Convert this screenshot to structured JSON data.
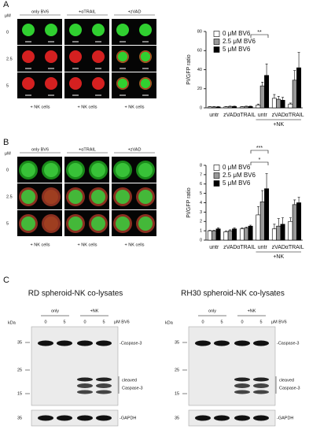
{
  "chart_data": [
    {
      "type": "bar",
      "y_label": "PI/GFP ratio",
      "categories": [
        "untr",
        "zVAD",
        "αTRAIL",
        "untr",
        "zVAD",
        "αTRAIL"
      ],
      "group_label": "+NK",
      "series": [
        {
          "name": "0 μM BV6",
          "color": "#ffffff",
          "values": [
            1,
            1,
            1,
            3,
            10,
            4
          ],
          "errors": [
            0.3,
            0.3,
            0.3,
            1,
            4,
            1
          ]
        },
        {
          "name": "2.5 μM BV6",
          "color": "#999999",
          "values": [
            1,
            1.5,
            1.5,
            23,
            9,
            29
          ],
          "errors": [
            0.3,
            0.3,
            0.3,
            4,
            3,
            10
          ]
        },
        {
          "name": "5 μM BV6",
          "color": "#000000",
          "values": [
            1,
            1.5,
            1.5,
            34,
            8,
            42
          ],
          "errors": [
            0.3,
            0.3,
            0.3,
            12,
            3,
            16
          ]
        }
      ],
      "ylim": [
        0,
        80
      ],
      "yticks": [
        0,
        20,
        40,
        60,
        80
      ],
      "annotations": [
        "**"
      ]
    },
    {
      "type": "bar",
      "y_label": "PI/GFP ratio",
      "categories": [
        "untr",
        "zVAD",
        "αTRAIL",
        "untr",
        "zVAD",
        "αTRAIL"
      ],
      "group_label": "+NK",
      "series": [
        {
          "name": "0 μM BV6",
          "color": "#ffffff",
          "values": [
            1,
            0.9,
            1.2,
            2.7,
            1.2,
            2
          ],
          "errors": [
            0.05,
            0.1,
            0.1,
            0.9,
            0.5,
            0.4
          ]
        },
        {
          "name": "2.5 μM BV6",
          "color": "#999999",
          "values": [
            1,
            1,
            1.3,
            4.1,
            1.5,
            3.8
          ],
          "errors": [
            0.05,
            0.1,
            0.1,
            1.2,
            0.8,
            0.5
          ]
        },
        {
          "name": "5 μM BV6",
          "color": "#000000",
          "values": [
            1.2,
            1.2,
            1.5,
            5.5,
            1.7,
            4
          ],
          "errors": [
            0.1,
            0.1,
            0.1,
            1.6,
            0.7,
            0.6
          ]
        }
      ],
      "ylim": [
        0,
        8
      ],
      "yticks": [
        0,
        1,
        2,
        3,
        4,
        5,
        6,
        7,
        8
      ],
      "annotations": [
        "***",
        "*"
      ]
    }
  ],
  "panels": {
    "A": {
      "letter": "A",
      "unit": "μM",
      "columns": [
        "only BV6",
        "+αTRAIL",
        "+zVAD"
      ],
      "rows": [
        "0",
        "2.5",
        "5"
      ],
      "footers": [
        "+ NK cells",
        "+ NK cells",
        "+ NK cells"
      ]
    },
    "B": {
      "letter": "B",
      "unit": "μM",
      "columns": [
        "only BV6",
        "+αTRAIL",
        "+zVAD"
      ],
      "rows": [
        "0",
        "2.5",
        "5"
      ],
      "footers": [
        "+ NK cells",
        "+ NK cells",
        "+ NK cells"
      ]
    },
    "C": {
      "letter": "C",
      "blots": [
        {
          "title": "RD spheroid-NK co-lysates",
          "kda": "kDa",
          "groups": [
            "only",
            "+NK"
          ],
          "lanes": [
            "0",
            "5",
            "0",
            "5"
          ],
          "unit": "μM BV6",
          "markers": [
            "35",
            "25",
            "15"
          ],
          "band": "-Caspase-3",
          "cleaved": [
            "cleaved",
            "Caspase-3"
          ],
          "loading_marker": "35",
          "loading": "-GAPDH"
        },
        {
          "title": "RH30 spheroid-NK co-lysates",
          "kda": "kDa",
          "groups": [
            "only",
            "+NK"
          ],
          "lanes": [
            "0",
            "5",
            "0",
            "5"
          ],
          "unit": "μM BV6",
          "markers": [
            "35",
            "25",
            "15"
          ],
          "band": "-Caspase-3",
          "cleaved": [
            "cleaved",
            "Caspase-3"
          ],
          "loading_marker": "35",
          "loading": "-GAPDH"
        }
      ]
    }
  }
}
